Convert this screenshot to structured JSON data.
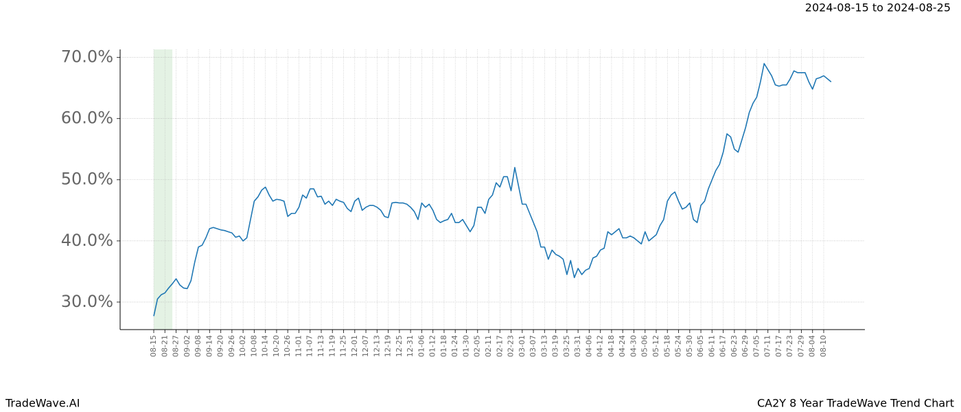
{
  "chart_data": {
    "type": "line",
    "date_range": "2024-08-15 to 2024-08-25",
    "brand": "TradeWave.AI",
    "title": "CA2Y 8 Year TradeWave Trend Chart",
    "categories": [
      "08-15",
      null,
      null,
      "08-21",
      null,
      null,
      "08-27",
      null,
      null,
      "09-02",
      null,
      null,
      "09-08",
      null,
      null,
      "09-14",
      null,
      null,
      "09-20",
      null,
      null,
      "09-26",
      null,
      null,
      "10-02",
      null,
      null,
      "10-08",
      null,
      null,
      "10-14",
      null,
      null,
      "10-20",
      null,
      null,
      "10-26",
      null,
      null,
      "11-01",
      null,
      null,
      "11-07",
      null,
      null,
      "11-13",
      null,
      null,
      "11-19",
      null,
      null,
      "11-25",
      null,
      null,
      "12-01",
      null,
      null,
      "12-07",
      null,
      null,
      "12-13",
      null,
      null,
      "12-19",
      null,
      null,
      "12-25",
      null,
      null,
      "12-31",
      null,
      null,
      "01-06",
      null,
      null,
      "01-12",
      null,
      null,
      "01-18",
      null,
      null,
      "01-24",
      null,
      null,
      "01-30",
      null,
      null,
      "02-05",
      null,
      null,
      "02-11",
      null,
      null,
      "02-17",
      null,
      null,
      "02-23",
      null,
      null,
      "03-01",
      null,
      null,
      "03-07",
      null,
      null,
      "03-13",
      null,
      null,
      "03-19",
      null,
      null,
      "03-25",
      null,
      null,
      "03-31",
      null,
      null,
      "04-06",
      null,
      null,
      "04-12",
      null,
      null,
      "04-18",
      null,
      null,
      "04-24",
      null,
      null,
      "04-30",
      null,
      null,
      "05-06",
      null,
      null,
      "05-12",
      null,
      null,
      "05-18",
      null,
      null,
      "05-24",
      null,
      null,
      "05-30",
      null,
      null,
      "06-05",
      null,
      null,
      "06-11",
      null,
      null,
      "06-17",
      null,
      null,
      "06-23",
      null,
      null,
      "06-29",
      null,
      null,
      "07-05",
      null,
      null,
      "07-11",
      null,
      null,
      "07-17",
      null,
      null,
      "07-23",
      null,
      null,
      "07-29",
      null,
      null,
      "08-04",
      null,
      null,
      "08-10",
      null,
      null
    ],
    "values": [
      27.7,
      30.5,
      31.2,
      31.5,
      32.3,
      33.0,
      33.8,
      32.8,
      32.3,
      32.2,
      33.5,
      36.5,
      39.0,
      39.3,
      40.5,
      42.0,
      42.2,
      42.0,
      41.8,
      41.7,
      41.5,
      41.3,
      40.6,
      40.8,
      40.0,
      40.5,
      43.5,
      46.5,
      47.2,
      48.3,
      48.8,
      47.5,
      46.5,
      46.8,
      46.7,
      46.5,
      44.0,
      44.5,
      44.5,
      45.5,
      47.5,
      47.0,
      48.5,
      48.5,
      47.2,
      47.3,
      46.0,
      46.5,
      45.8,
      46.8,
      46.5,
      46.3,
      45.3,
      44.8,
      46.5,
      47.0,
      45.0,
      45.5,
      45.8,
      45.8,
      45.5,
      45.0,
      44.0,
      43.8,
      46.2,
      46.3,
      46.2,
      46.2,
      46.0,
      45.5,
      44.8,
      43.5,
      46.2,
      45.5,
      46.0,
      45.0,
      43.5,
      43.0,
      43.3,
      43.5,
      44.5,
      43.0,
      43.0,
      43.5,
      42.5,
      41.5,
      42.5,
      45.5,
      45.5,
      44.5,
      46.8,
      47.5,
      49.5,
      48.8,
      50.5,
      50.5,
      48.2,
      52.0,
      49.0,
      46.0,
      46.0,
      44.5,
      43.0,
      41.5,
      39.0,
      39.0,
      37.0,
      38.5,
      37.8,
      37.5,
      37.0,
      34.5,
      36.8,
      34.0,
      35.5,
      34.5,
      35.2,
      35.5,
      37.2,
      37.5,
      38.5,
      38.8,
      41.5,
      41.0,
      41.5,
      42.0,
      40.5,
      40.5,
      40.8,
      40.5,
      40.0,
      39.5,
      41.5,
      40.0,
      40.5,
      41.0,
      42.5,
      43.5,
      46.5,
      47.5,
      48.0,
      46.5,
      45.2,
      45.5,
      46.2,
      43.5,
      43.0,
      45.8,
      46.5,
      48.5,
      50.0,
      51.5,
      52.5,
      54.5,
      57.5,
      57.0,
      55.0,
      54.5,
      56.5,
      58.5,
      61.0,
      62.5,
      63.5,
      66.0,
      69.0,
      68.0,
      67.0,
      65.5,
      65.3,
      65.5,
      65.5,
      66.5,
      67.8,
      67.5,
      67.5,
      67.5,
      66.0,
      64.8,
      66.5,
      66.7,
      67.0,
      66.5,
      66.0
    ],
    "color": "#1f77b4",
    "ylim": [
      25.5,
      71.3
    ],
    "yticks": [
      {
        "value": 30,
        "label": "30.0%"
      },
      {
        "value": 40,
        "label": "40.0%"
      },
      {
        "value": 50,
        "label": "50.0%"
      },
      {
        "value": 60,
        "label": "60.0%"
      },
      {
        "value": 70,
        "label": "70.0%"
      }
    ],
    "grid": true,
    "shade": {
      "from": 0,
      "to": 5,
      "color": "#e4f2e4"
    }
  }
}
